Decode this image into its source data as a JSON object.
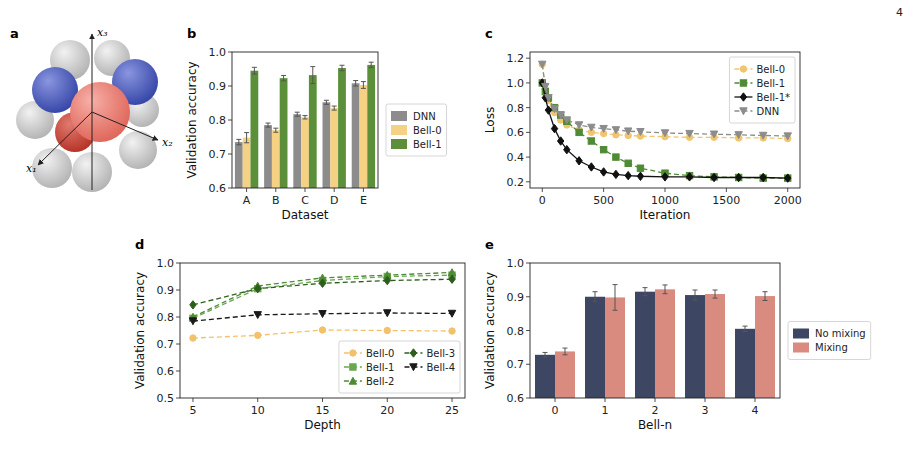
{
  "page_number": "4",
  "diagram": {
    "panel": "a",
    "axis_labels": [
      "x₁",
      "x₂",
      "x₃"
    ]
  },
  "chart_data": [
    {
      "panel": "b",
      "type": "bar",
      "x_label": "Dataset",
      "y_label": "Validation accuracy",
      "categories": [
        "A",
        "B",
        "C",
        "D",
        "E"
      ],
      "series": [
        {
          "name": "DNN",
          "color": "#8c8c8c",
          "values": [
            0.735,
            0.785,
            0.817,
            0.852,
            0.908
          ],
          "errors": [
            0.008,
            0.006,
            0.006,
            0.006,
            0.008
          ]
        },
        {
          "name": "Bell-0",
          "color": "#f4d183",
          "values": [
            0.748,
            0.77,
            0.808,
            0.835,
            0.903
          ],
          "errors": [
            0.015,
            0.006,
            0.005,
            0.006,
            0.01
          ]
        },
        {
          "name": "Bell-1",
          "color": "#5b8f3a",
          "values": [
            0.945,
            0.923,
            0.932,
            0.953,
            0.962
          ],
          "errors": [
            0.01,
            0.008,
            0.025,
            0.008,
            0.008
          ]
        }
      ],
      "ylim": [
        0.6,
        1.0
      ],
      "yticks": [
        0.6,
        0.7,
        0.8,
        0.9,
        {
          "value": 1,
          "label": "1.0"
        }
      ],
      "legend": "right"
    },
    {
      "panel": "c",
      "type": "line",
      "x_label": "Iteration",
      "y_label": "Loss",
      "x": [
        0,
        25,
        50,
        100,
        150,
        200,
        300,
        400,
        500,
        600,
        700,
        800,
        1000,
        1200,
        1400,
        1600,
        1800,
        2000
      ],
      "series": [
        {
          "name": "Bell-0",
          "color": "#f2c46d",
          "marker": "circle",
          "line_style": "dashed",
          "values": [
            1.15,
            0.95,
            0.86,
            0.76,
            0.7,
            0.66,
            0.62,
            0.6,
            0.59,
            0.58,
            0.575,
            0.57,
            0.565,
            0.56,
            0.56,
            0.555,
            0.555,
            0.55
          ]
        },
        {
          "name": "Bell-1",
          "color": "#4f8a35",
          "marker": "square",
          "line_style": "dashed",
          "values": [
            1.0,
            0.93,
            0.88,
            0.8,
            0.74,
            0.69,
            0.6,
            0.53,
            0.46,
            0.4,
            0.35,
            0.31,
            0.27,
            0.25,
            0.24,
            0.235,
            0.23,
            0.23
          ]
        },
        {
          "name": "Bell-1*",
          "color": "#111111",
          "marker": "diamond",
          "line_style": "solid",
          "values": [
            1.0,
            0.88,
            0.78,
            0.63,
            0.53,
            0.46,
            0.37,
            0.32,
            0.28,
            0.26,
            0.25,
            0.245,
            0.24,
            0.24,
            0.235,
            0.235,
            0.235,
            0.23
          ]
        },
        {
          "name": "DNN",
          "color": "#8c8c8c",
          "marker": "triangle_down",
          "line_style": "dashed",
          "values": [
            1.15,
            0.97,
            0.88,
            0.79,
            0.74,
            0.7,
            0.66,
            0.64,
            0.63,
            0.62,
            0.61,
            0.605,
            0.595,
            0.59,
            0.585,
            0.58,
            0.575,
            0.57
          ]
        }
      ],
      "xlim": [
        -100,
        2100
      ],
      "xticks": [
        0,
        500,
        1000,
        1500,
        2000
      ],
      "ylim": [
        0.15,
        1.25
      ],
      "yticks": [
        0.2,
        0.4,
        0.6,
        0.8,
        {
          "value": 1,
          "label": "1.0"
        },
        1.2
      ],
      "legend": "upper right"
    },
    {
      "panel": "d",
      "type": "line",
      "x_label": "Depth",
      "y_label": "Validation accuracy",
      "x": [
        5,
        10,
        15,
        20,
        25
      ],
      "series": [
        {
          "name": "Bell-0",
          "color": "#f2c26b",
          "marker": "circle",
          "line_style": "dashed",
          "values": [
            0.722,
            0.732,
            0.752,
            0.75,
            0.748
          ]
        },
        {
          "name": "Bell-1",
          "color": "#6aa84f",
          "marker": "square",
          "line_style": "dashed",
          "values": [
            0.795,
            0.905,
            0.935,
            0.95,
            0.955
          ]
        },
        {
          "name": "Bell-2",
          "color": "#4f8a35",
          "marker": "triangle_up",
          "line_style": "dashed",
          "values": [
            0.8,
            0.915,
            0.945,
            0.955,
            0.965
          ]
        },
        {
          "name": "Bell-3",
          "color": "#2e5e1e",
          "marker": "diamond",
          "line_style": "dashed",
          "values": [
            0.845,
            0.905,
            0.925,
            0.935,
            0.94
          ]
        },
        {
          "name": "Bell-4",
          "color": "#1a1a1a",
          "marker": "triangle_down",
          "line_style": "dashed",
          "values": [
            0.785,
            0.808,
            0.812,
            0.815,
            0.813
          ]
        }
      ],
      "xlim": [
        4,
        26
      ],
      "xticks": [
        5,
        10,
        15,
        20,
        25
      ],
      "ylim": [
        0.5,
        1.0
      ],
      "yticks": [
        0.5,
        0.6,
        0.7,
        0.8,
        0.9,
        {
          "value": 1,
          "label": "1.0"
        }
      ],
      "legend": "lower right"
    },
    {
      "panel": "e",
      "type": "bar",
      "x_label": "Bell-n",
      "y_label": "Validation accuracy",
      "categories": [
        "0",
        "1",
        "2",
        "3",
        "4"
      ],
      "series": [
        {
          "name": "No mixing",
          "color": "#3d4663",
          "values": [
            0.728,
            0.9,
            0.915,
            0.905,
            0.805
          ],
          "errors": [
            0.007,
            0.015,
            0.012,
            0.015,
            0.008
          ]
        },
        {
          "name": "Mixing",
          "color": "#d98b80",
          "values": [
            0.738,
            0.898,
            0.922,
            0.908,
            0.902
          ],
          "errors": [
            0.01,
            0.038,
            0.013,
            0.012,
            0.013
          ]
        }
      ],
      "ylim": [
        0.6,
        1.0
      ],
      "yticks": [
        0.6,
        0.7,
        0.8,
        0.9,
        {
          "value": 1,
          "label": "1.0"
        }
      ],
      "legend": "right"
    }
  ]
}
